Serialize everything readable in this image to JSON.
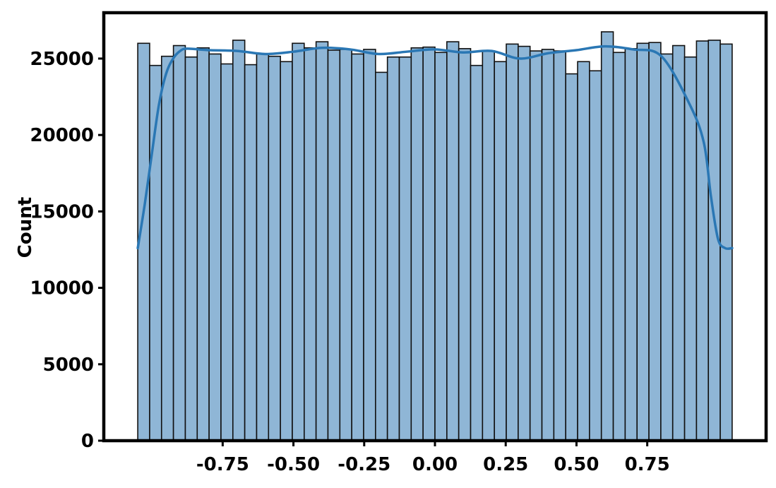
{
  "chart_data": {
    "type": "bar",
    "title": "",
    "xlabel": "",
    "ylabel": "Count",
    "xlim": [
      -1.17,
      1.17
    ],
    "ylim": [
      0,
      28000
    ],
    "bins": {
      "start": -1.05,
      "end": 1.05,
      "counts": [
        26000,
        24550,
        25150,
        25850,
        25100,
        25700,
        25300,
        24650,
        26200,
        24600,
        25300,
        25150,
        24800,
        26000,
        25700,
        26100,
        25550,
        25600,
        25300,
        25600,
        24100,
        25100,
        25100,
        25700,
        25750,
        25400,
        26100,
        25650,
        24550,
        25500,
        24800,
        25950,
        25800,
        25500,
        25600,
        25500,
        24000,
        24800,
        24200,
        26750,
        25400,
        25650,
        26000,
        26050,
        25300,
        25850,
        25100,
        26150,
        26200,
        25950
      ]
    },
    "kde": {
      "x": [
        -1.05,
        -1.025,
        -1.0,
        -0.975,
        -0.95,
        -0.925,
        -0.9,
        -0.875,
        -0.8,
        -0.7,
        -0.6,
        -0.5,
        -0.4,
        -0.3,
        -0.2,
        -0.1,
        0.0,
        0.1,
        0.2,
        0.3,
        0.4,
        0.5,
        0.6,
        0.7,
        0.8,
        0.9,
        0.95,
        0.975,
        1.0,
        1.025,
        1.05
      ],
      "y": [
        12600,
        15500,
        18800,
        22000,
        24000,
        25000,
        25500,
        25650,
        25550,
        25500,
        25300,
        25450,
        25700,
        25600,
        25300,
        25450,
        25600,
        25400,
        25500,
        25000,
        25350,
        25550,
        25800,
        25600,
        25150,
        22000,
        19500,
        16000,
        13200,
        12600,
        12600
      ]
    },
    "x_ticks": [
      {
        "value": -0.75,
        "label": "-0.75"
      },
      {
        "value": -0.5,
        "label": "-0.50"
      },
      {
        "value": -0.25,
        "label": "-0.25"
      },
      {
        "value": 0.0,
        "label": "0.00"
      },
      {
        "value": 0.25,
        "label": "0.25"
      },
      {
        "value": 0.5,
        "label": "0.50"
      },
      {
        "value": 0.75,
        "label": "0.75"
      }
    ],
    "y_ticks": [
      {
        "value": 0,
        "label": "0"
      },
      {
        "value": 5000,
        "label": "5000"
      },
      {
        "value": 10000,
        "label": "10000"
      },
      {
        "value": 15000,
        "label": "15000"
      },
      {
        "value": 20000,
        "label": "20000"
      },
      {
        "value": 25000,
        "label": "25000"
      }
    ],
    "grid": false,
    "legend": "none",
    "colors": {
      "bar_fill": "#8fb6d6",
      "bar_edge": "#111111",
      "kde_line": "#2a77b4"
    }
  }
}
